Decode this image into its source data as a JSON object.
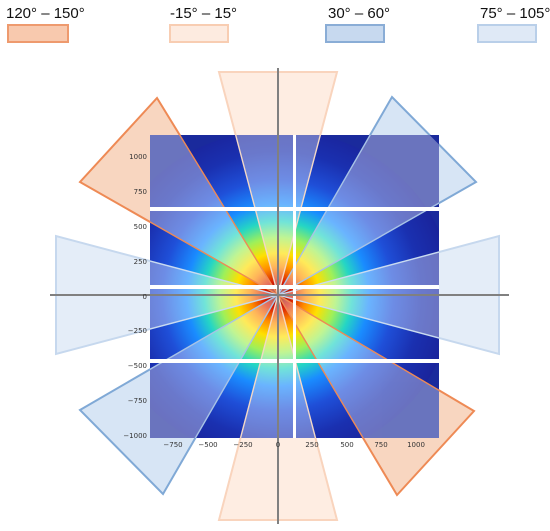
{
  "legend": [
    {
      "label": "120° – 150°",
      "fill": "#f8c9ae",
      "stroke": "#ee9a6e"
    },
    {
      "label": "-15° – 15°",
      "fill": "#fdebe0",
      "stroke": "#f8cdb2"
    },
    {
      "label": "30° – 60°",
      "fill": "#c7d9ef",
      "stroke": "#8aadd6"
    },
    {
      "label": "75° – 105°",
      "fill": "#dfe9f6",
      "stroke": "#b9cfe9"
    }
  ],
  "detector": {
    "colormap": "jet",
    "x_ticks": [
      "−750",
      "−500",
      "−250",
      "0",
      "250",
      "500",
      "750",
      "1000"
    ],
    "y_ticks": [
      "1000",
      "750",
      "500",
      "250",
      "0",
      "−250",
      "−500",
      "−750",
      "−1000"
    ]
  },
  "colors": {
    "axis": "#808080",
    "detector_background": "#1a2a9c",
    "gap": "#ffffff"
  },
  "wedge_colors": {
    "orange": "#f3b48c",
    "orange_edge": "#ee8a55",
    "peach": "#fde6d6",
    "blue": "#bcd3ee",
    "blue_edge": "#80a9d6",
    "lightblue": "#d9e6f5"
  }
}
